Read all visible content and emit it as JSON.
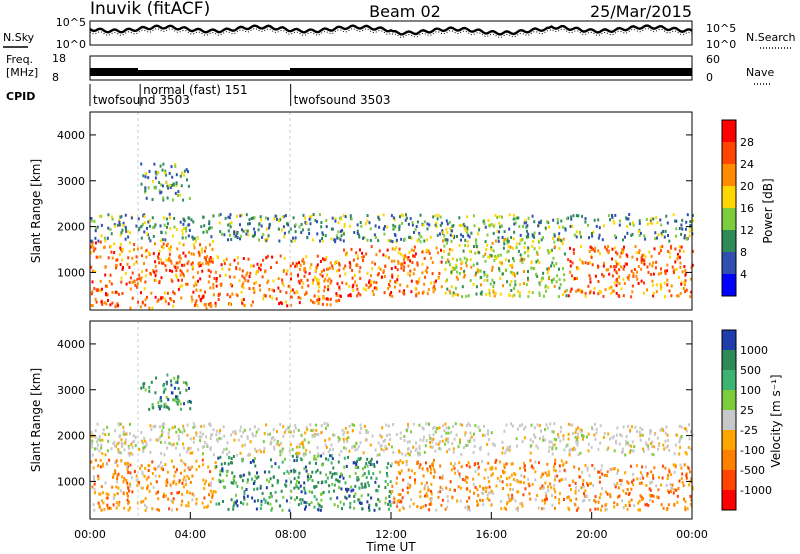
{
  "header": {
    "station": "Inuvik (fitACF)",
    "beam": "Beam 02",
    "date": "25/Mar/2015"
  },
  "chart_data": [
    {
      "type": "line",
      "panel": "noise",
      "left_label": "N.Sky",
      "right_label": "N.Search",
      "left_ticks": [
        "10^5",
        "10^0"
      ],
      "right_ticks": [
        "10^5",
        "10^0"
      ]
    },
    {
      "type": "line",
      "panel": "frequency",
      "left_label_line1": "Freq.",
      "left_label_line2": "[MHz]",
      "right_label": "Nave",
      "left_ticks": [
        "18",
        "8"
      ],
      "right_ticks": [
        "60",
        "0"
      ]
    },
    {
      "type": "table",
      "panel": "cpid",
      "label": "CPID",
      "segments": [
        {
          "start": "00:00",
          "end": "02:00",
          "name": "twofsound 3503"
        },
        {
          "start": "02:00",
          "end": "08:00",
          "name": "normal (fast) 151"
        },
        {
          "start": "08:00",
          "end": "24:00",
          "name": "twofsound 3503"
        }
      ]
    },
    {
      "type": "heatmap",
      "panel": "power",
      "ylabel": "Slant Range [km]",
      "ylim": [
        180,
        4500
      ],
      "yticks": [
        1000,
        2000,
        3000,
        4000
      ],
      "colorbar_label": "Power [dB]",
      "colorbar_ticks": [
        "4",
        "8",
        "12",
        "16",
        "20",
        "24",
        "28"
      ],
      "colorbar_colors": [
        "#0000ff",
        "#3050b0",
        "#2e8b57",
        "#7ccd3c",
        "#ffd700",
        "#ff8c00",
        "#ff4500",
        "#ff0000"
      ],
      "echo_regions": [
        {
          "t0": 0,
          "t1": 5,
          "r0": 250,
          "r1": 1700,
          "level": "high"
        },
        {
          "t0": 5,
          "t1": 10,
          "r0": 300,
          "r1": 1400,
          "level": "high"
        },
        {
          "t0": 10,
          "t1": 14,
          "r0": 500,
          "r1": 1600,
          "level": "high"
        },
        {
          "t0": 14,
          "t1": 19,
          "r0": 500,
          "r1": 1800,
          "level": "medium"
        },
        {
          "t0": 19,
          "t1": 24,
          "r0": 500,
          "r1": 1600,
          "level": "high"
        },
        {
          "t0": 0,
          "t1": 24,
          "r0": 1700,
          "r1": 2300,
          "level": "low"
        },
        {
          "t0": 2,
          "t1": 4,
          "r0": 2600,
          "r1": 3400,
          "level": "low"
        }
      ]
    },
    {
      "type": "heatmap",
      "panel": "velocity",
      "ylabel": "Slant Range [km]",
      "xlabel": "Time UT",
      "ylim": [
        180,
        4500
      ],
      "yticks": [
        1000,
        2000,
        3000,
        4000
      ],
      "xticks": [
        "00:00",
        "04:00",
        "08:00",
        "12:00",
        "16:00",
        "20:00",
        "00:00"
      ],
      "colorbar_label": "Velocity [m s⁻¹]",
      "colorbar_ticks": [
        "1000",
        "500",
        "100",
        "25",
        "-25",
        "-100",
        "-500",
        "-1000"
      ],
      "colorbar_colors": [
        "#1e3caa",
        "#2e8b57",
        "#3cb371",
        "#7ccd3c",
        "#c8c8c8",
        "#ffa500",
        "#ff7f00",
        "#ff4500",
        "#ff0000"
      ],
      "echo_regions": [
        {
          "t0": 0,
          "t1": 5,
          "r0": 400,
          "r1": 1500,
          "level": "away"
        },
        {
          "t0": 5,
          "t1": 12,
          "r0": 400,
          "r1": 1600,
          "level": "toward"
        },
        {
          "t0": 12,
          "t1": 19,
          "r0": 400,
          "r1": 1500,
          "level": "away"
        },
        {
          "t0": 19,
          "t1": 24,
          "r0": 400,
          "r1": 1400,
          "level": "away"
        },
        {
          "t0": 0,
          "t1": 24,
          "r0": 1600,
          "r1": 2300,
          "level": "ground"
        },
        {
          "t0": 2,
          "t1": 4,
          "r0": 2600,
          "r1": 3400,
          "level": "toward"
        }
      ]
    }
  ]
}
